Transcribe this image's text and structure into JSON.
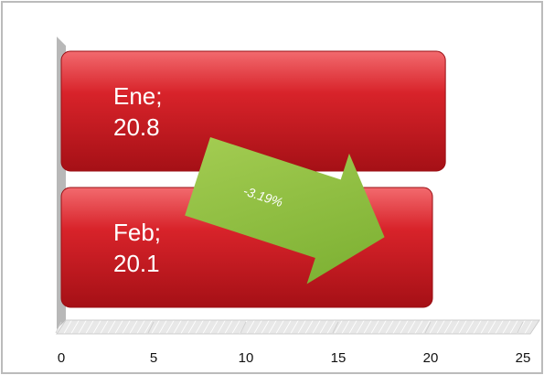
{
  "chart_data": {
    "type": "bar",
    "orientation": "horizontal",
    "values": [
      20.8,
      20.1
    ],
    "value_labels": [
      "Ene; 20.8",
      "Feb; 20.1"
    ],
    "color": "#c8191f",
    "xlim": [
      0,
      25
    ],
    "xticks": [
      0,
      5,
      10,
      15,
      20,
      25
    ],
    "annotation": "-3.19%",
    "annotation_color": "#8cbf3f"
  }
}
